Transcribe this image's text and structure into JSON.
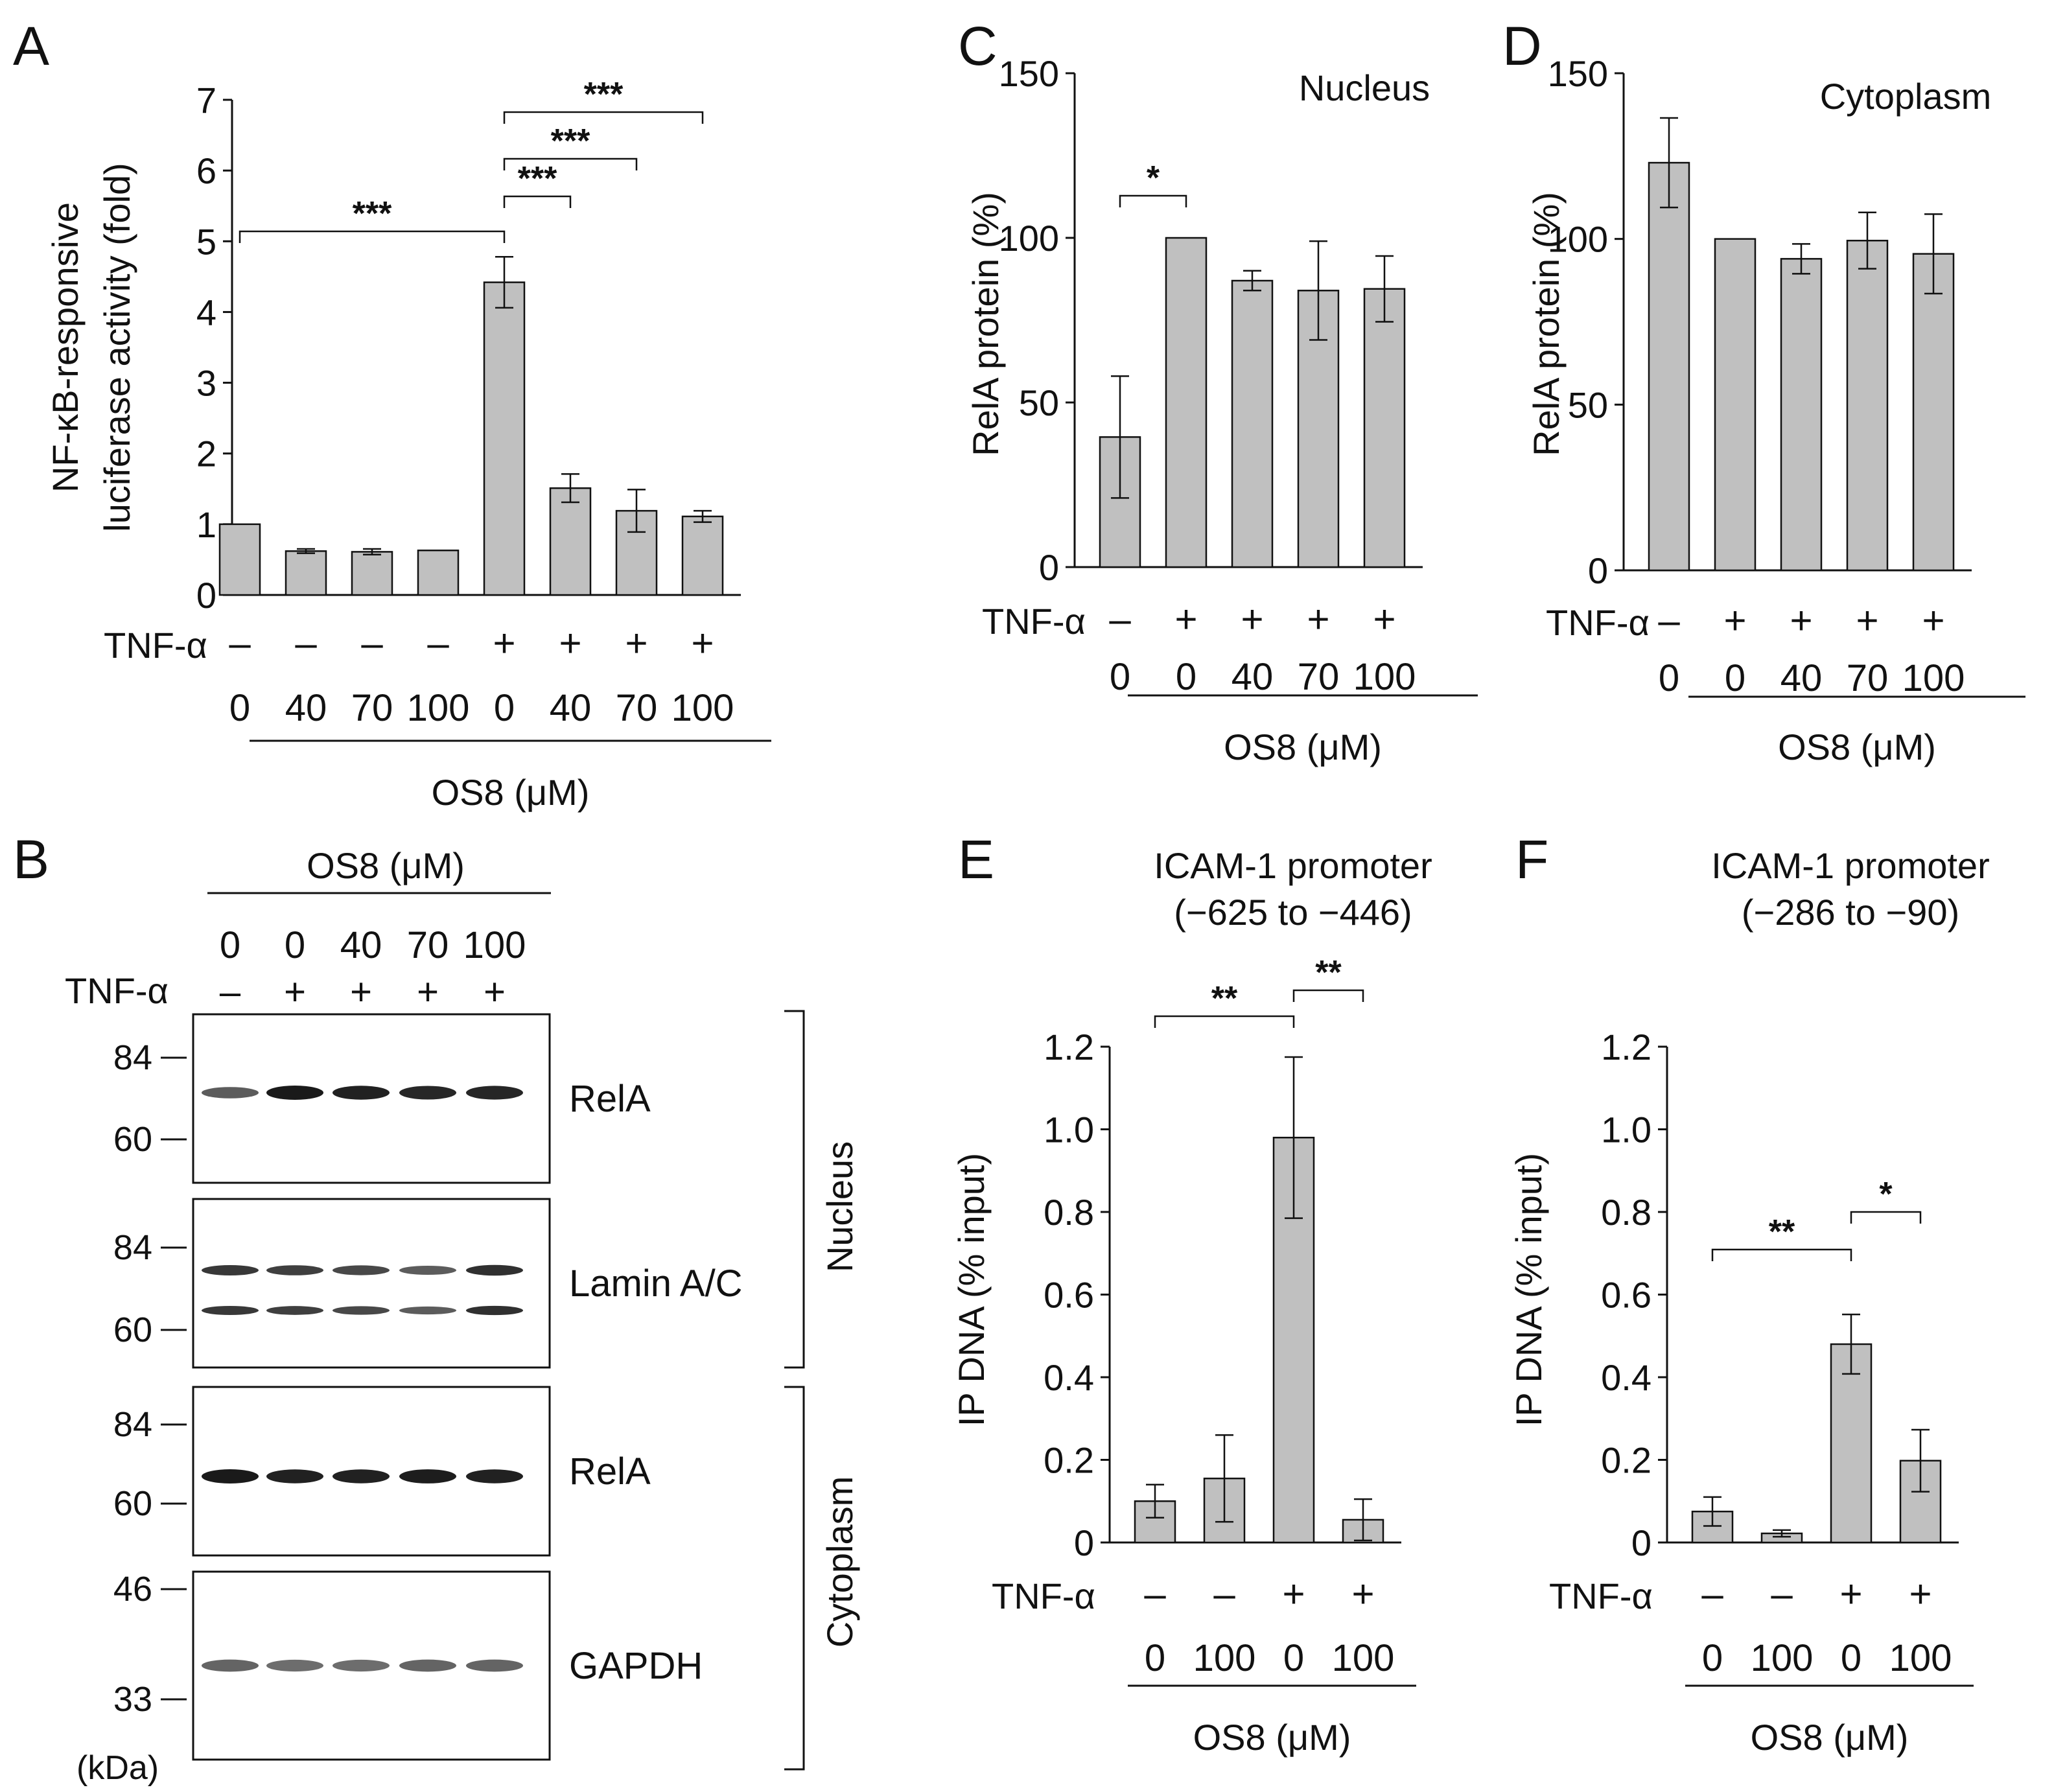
{
  "chart_data": [
    {
      "panel": "A",
      "type": "bar",
      "title": "",
      "ylabel": [
        "NF-κB-responsive",
        "luciferase activity (fold)"
      ],
      "ylim": [
        0,
        7
      ],
      "yticks": [
        "0",
        "1",
        "2",
        "3",
        "4",
        "5",
        "6",
        "7"
      ],
      "treatment_label": "TNF-α",
      "treatment": [
        "–",
        "–",
        "–",
        "–",
        "+",
        "+",
        "+",
        "+"
      ],
      "categories": [
        "0",
        "40",
        "70",
        "100",
        "0",
        "40",
        "70",
        "100"
      ],
      "xlabel": "OS8 (μM)",
      "values": [
        1.0,
        0.62,
        0.61,
        0.63,
        4.42,
        1.51,
        1.19,
        1.11
      ],
      "errors": [
        0,
        0.03,
        0.04,
        0,
        0.36,
        0.2,
        0.3,
        0.08
      ],
      "significance": [
        {
          "from": 0,
          "to": 4,
          "label": "***"
        },
        {
          "from": 4,
          "to": 5,
          "label": "***"
        },
        {
          "from": 4,
          "to": 6,
          "label": "***"
        },
        {
          "from": 4,
          "to": 7,
          "label": "***"
        }
      ]
    },
    {
      "panel": "C",
      "type": "bar",
      "title": "Nucleus",
      "ylabel": [
        "RelA protein  (%)"
      ],
      "ylim": [
        0,
        150
      ],
      "yticks": [
        "0",
        "50",
        "100",
        "150"
      ],
      "treatment_label": "TNF-α",
      "treatment": [
        "–",
        "+",
        "+",
        "+",
        "+"
      ],
      "categories": [
        "0",
        "0",
        "40",
        "70",
        "100"
      ],
      "xlabel": "OS8 (μM)",
      "values": [
        39.5,
        100,
        87,
        84,
        84.5
      ],
      "errors": [
        18.5,
        0,
        3,
        15,
        10
      ],
      "significance": [
        {
          "from": 0,
          "to": 1,
          "label": "*"
        }
      ]
    },
    {
      "panel": "D",
      "type": "bar",
      "title": "Cytoplasm",
      "ylabel": [
        "RelA protein  (%)"
      ],
      "ylim": [
        0,
        150
      ],
      "yticks": [
        "0",
        "50",
        "100",
        "150"
      ],
      "treatment_label": "TNF-α",
      "treatment": [
        "–",
        "+",
        "+",
        "+",
        "+"
      ],
      "categories": [
        "0",
        "0",
        "40",
        "70",
        "100"
      ],
      "xlabel": "OS8 (μM)",
      "values": [
        123,
        100,
        94,
        99.5,
        95.5
      ],
      "errors": [
        13.5,
        0,
        4.5,
        8.5,
        12
      ],
      "significance": []
    },
    {
      "panel": "E",
      "type": "bar",
      "title": "ICAM-1 promoter",
      "subtitle": "(−625 to −446)",
      "ylabel": [
        "IP DNA  (% input)"
      ],
      "ylim": [
        0,
        1.2
      ],
      "yticks": [
        "0",
        "0.2",
        "0.4",
        "0.6",
        "0.8",
        "1.0",
        "1.2"
      ],
      "treatment_label": "TNF-α",
      "treatment": [
        "–",
        "–",
        "+",
        "+"
      ],
      "categories": [
        "0",
        "100",
        "0",
        "100"
      ],
      "xlabel": "OS8 (μM)",
      "values": [
        0.1,
        0.155,
        0.98,
        0.055
      ],
      "errors": [
        0.04,
        0.105,
        0.195,
        0.05
      ],
      "significance": [
        {
          "from": 0,
          "to": 2,
          "label": "**"
        },
        {
          "from": 2,
          "to": 3,
          "label": "**"
        }
      ]
    },
    {
      "panel": "F",
      "type": "bar",
      "title": "ICAM-1 promoter",
      "subtitle": "(−286 to −90)",
      "ylabel": [
        "IP DNA  (% input)"
      ],
      "ylim": [
        0,
        1.2
      ],
      "yticks": [
        "0",
        "0.2",
        "0.4",
        "0.6",
        "0.8",
        "1.0",
        "1.2"
      ],
      "treatment_label": "TNF-α",
      "treatment": [
        "–",
        "–",
        "+",
        "+"
      ],
      "categories": [
        "0",
        "100",
        "0",
        "100"
      ],
      "xlabel": "OS8 (μM)",
      "values": [
        0.075,
        0.022,
        0.48,
        0.198
      ],
      "errors": [
        0.035,
        0.008,
        0.072,
        0.075
      ],
      "significance": [
        {
          "from": 0,
          "to": 2,
          "label": "**"
        },
        {
          "from": 2,
          "to": 3,
          "label": "*"
        }
      ]
    }
  ],
  "panel_labels": [
    "A",
    "B",
    "C",
    "D",
    "E",
    "F"
  ],
  "blot": {
    "header": "OS8 (μM)",
    "concentrations": [
      "0",
      "0",
      "40",
      "70",
      "100"
    ],
    "treatment_label": "TNF-α",
    "treatment": [
      "–",
      "+",
      "+",
      "+",
      "+"
    ],
    "kda_label": "(kDa)",
    "fractions": [
      "Nucleus",
      "Cytoplasm"
    ],
    "band_color": "#1a1a1a",
    "panels": [
      {
        "label": "RelA",
        "markers": [
          "84",
          "60"
        ],
        "intensities": [
          0.55,
          1.0,
          0.95,
          0.9,
          0.92
        ]
      },
      {
        "label": "Lamin A/C",
        "markers": [
          "84",
          "60"
        ],
        "intensities": [
          0.8,
          0.75,
          0.7,
          0.55,
          0.85
        ]
      },
      {
        "label": "RelA",
        "markers": [
          "84",
          "60"
        ],
        "intensities": [
          1.0,
          0.95,
          0.95,
          0.98,
          0.95
        ]
      },
      {
        "label": "GAPDH",
        "markers": [
          "46",
          "33"
        ],
        "intensities": [
          0.5,
          0.45,
          0.45,
          0.5,
          0.5
        ]
      }
    ]
  },
  "colors": {
    "bar": "#c0c0c0",
    "stroke": "#111111"
  }
}
